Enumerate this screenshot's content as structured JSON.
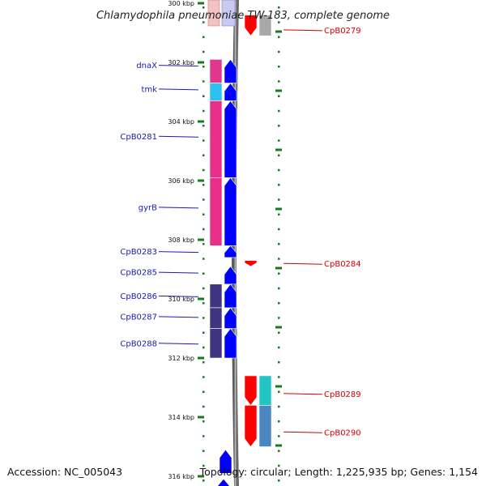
{
  "title": "Chlamydophila pneumoniae TW-183, complete genome",
  "footer": {
    "accession": "Accession: NC_005043",
    "summary": "Topology: circular; Length: 1,225,935 bp; Genes: 1,154"
  },
  "scale": {
    "ticks": [
      {
        "label": "300 kbp",
        "kbp": 300
      },
      {
        "label": "302 kbp",
        "kbp": 302
      },
      {
        "label": "304 kbp",
        "kbp": 304
      },
      {
        "label": "306 kbp",
        "kbp": 306
      },
      {
        "label": "308 kbp",
        "kbp": 308
      },
      {
        "label": "310 kbp",
        "kbp": 310
      },
      {
        "label": "312 kbp",
        "kbp": 312
      },
      {
        "label": "314 kbp",
        "kbp": 314
      },
      {
        "label": "316 kbp",
        "kbp": 316
      }
    ]
  },
  "genes_left": [
    {
      "name": "dnaX",
      "label_kbp": 302.1,
      "start": 301.9,
      "end": 302.7,
      "color": "#e0368c",
      "dir": "+"
    },
    {
      "name": "tmk",
      "label_kbp": 302.9,
      "start": 302.7,
      "end": 303.3,
      "color": "#2cc0ee",
      "dir": "+"
    },
    {
      "name": "CpB0281",
      "label_kbp": 304.5,
      "start": 303.3,
      "end": 305.9,
      "color": "#e8308a",
      "dir": "+"
    },
    {
      "name": "gyrB",
      "label_kbp": 306.9,
      "start": 305.9,
      "end": 308.2,
      "color": "#e8308a",
      "dir": "+"
    },
    {
      "name": "CpB0283",
      "label_kbp": 308.4,
      "start": 308.2,
      "end": 308.6,
      "color": "",
      "dir": "+"
    },
    {
      "name": "CpB0285",
      "label_kbp": 309.1,
      "start": 308.9,
      "end": 309.5,
      "color": "",
      "dir": "+"
    },
    {
      "name": "CpB0286",
      "label_kbp": 309.9,
      "start": 309.5,
      "end": 310.3,
      "color": "#3d3580",
      "dir": "+"
    },
    {
      "name": "CpB0287",
      "label_kbp": 310.6,
      "start": 310.3,
      "end": 311.0,
      "color": "#3d3580",
      "dir": "+"
    },
    {
      "name": "CpB0288",
      "label_kbp": 311.5,
      "start": 311.0,
      "end": 312.0,
      "color": "#3d3580",
      "dir": "+"
    }
  ],
  "genes_right": [
    {
      "name": "CpB0279",
      "label_kbp": 300.9,
      "start": 300.4,
      "end": 301.1,
      "color": "#a8a8a8",
      "dir": "-"
    },
    {
      "name": "CpB0284",
      "label_kbp": 308.8,
      "start": 308.7,
      "end": 308.9,
      "color": "",
      "dir": "-"
    },
    {
      "name": "CpB0289",
      "label_kbp": 313.2,
      "start": 312.6,
      "end": 313.6,
      "color": "#22c4c4",
      "dir": "-"
    },
    {
      "name": "CpB0290",
      "label_kbp": 314.5,
      "start": 313.6,
      "end": 315.0,
      "color": "#4a86c0",
      "dir": "-"
    }
  ],
  "colors": {
    "forward_strand": "#0000ff",
    "reverse_strand": "#ff0000",
    "label_left": "#1a1ab0",
    "label_right": "#d40000",
    "tick": "#1a7a1a",
    "backbone": "#888888"
  }
}
